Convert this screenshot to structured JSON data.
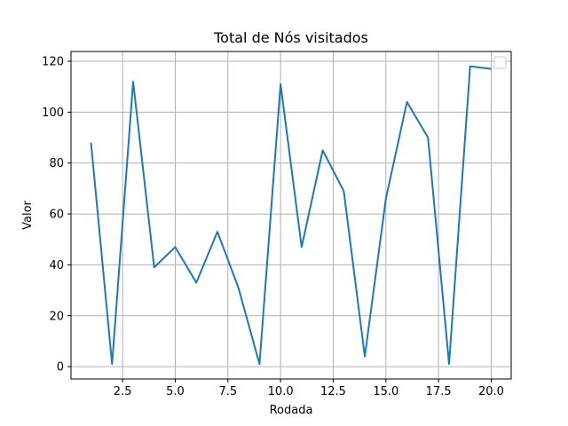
{
  "chart_data": {
    "type": "line",
    "title": "Total de Nós visitados",
    "xlabel": "Rodada",
    "ylabel": "Valor",
    "xlim": [
      0.05,
      20.95
    ],
    "ylim": [
      -4.85,
      123.85
    ],
    "x_ticks": [
      2.5,
      5.0,
      7.5,
      10.0,
      12.5,
      15.0,
      17.5,
      20.0
    ],
    "x_tick_labels": [
      "2.5",
      "5.0",
      "7.5",
      "10.0",
      "12.5",
      "15.0",
      "17.5",
      "20.0"
    ],
    "y_ticks": [
      0,
      20,
      40,
      60,
      80,
      100,
      120
    ],
    "y_tick_labels": [
      "0",
      "20",
      "40",
      "60",
      "80",
      "100",
      "120"
    ],
    "grid": true,
    "legend": {
      "placement": "top-right",
      "entries": []
    },
    "series": [
      {
        "color": "#1f77b4",
        "x": [
          1,
          2,
          3,
          4,
          5,
          6,
          7,
          8,
          9,
          10,
          11,
          12,
          13,
          14,
          15,
          16,
          17,
          18,
          19,
          20
        ],
        "y": [
          88,
          1,
          112,
          39,
          47,
          33,
          53,
          31,
          1,
          111,
          47,
          85,
          69,
          4,
          66,
          104,
          90,
          1,
          118,
          117
        ]
      }
    ]
  }
}
